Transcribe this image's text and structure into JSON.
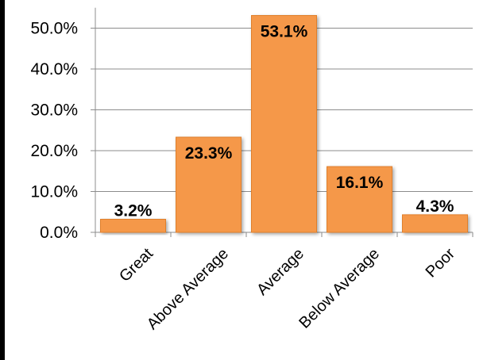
{
  "chart_data": {
    "type": "bar",
    "categories": [
      "Great",
      "Above Average",
      "Average",
      "Below Average",
      "Poor"
    ],
    "values": [
      3.2,
      23.3,
      53.1,
      16.1,
      4.3
    ],
    "data_labels": [
      "3.2%",
      "23.3%",
      "53.1%",
      "16.1%",
      "4.3%"
    ],
    "y_tick_labels": [
      "0.0%",
      "10.0%",
      "20.0%",
      "30.0%",
      "40.0%",
      "50.0%"
    ],
    "y_ticks": [
      0,
      10,
      20,
      30,
      40,
      50
    ],
    "ylim": [
      0,
      55
    ],
    "title": "",
    "xlabel": "",
    "ylabel": "",
    "grid": true,
    "legend": "none",
    "bar_color": "#F5984A",
    "bar_edge_color": "#E07F2A"
  }
}
